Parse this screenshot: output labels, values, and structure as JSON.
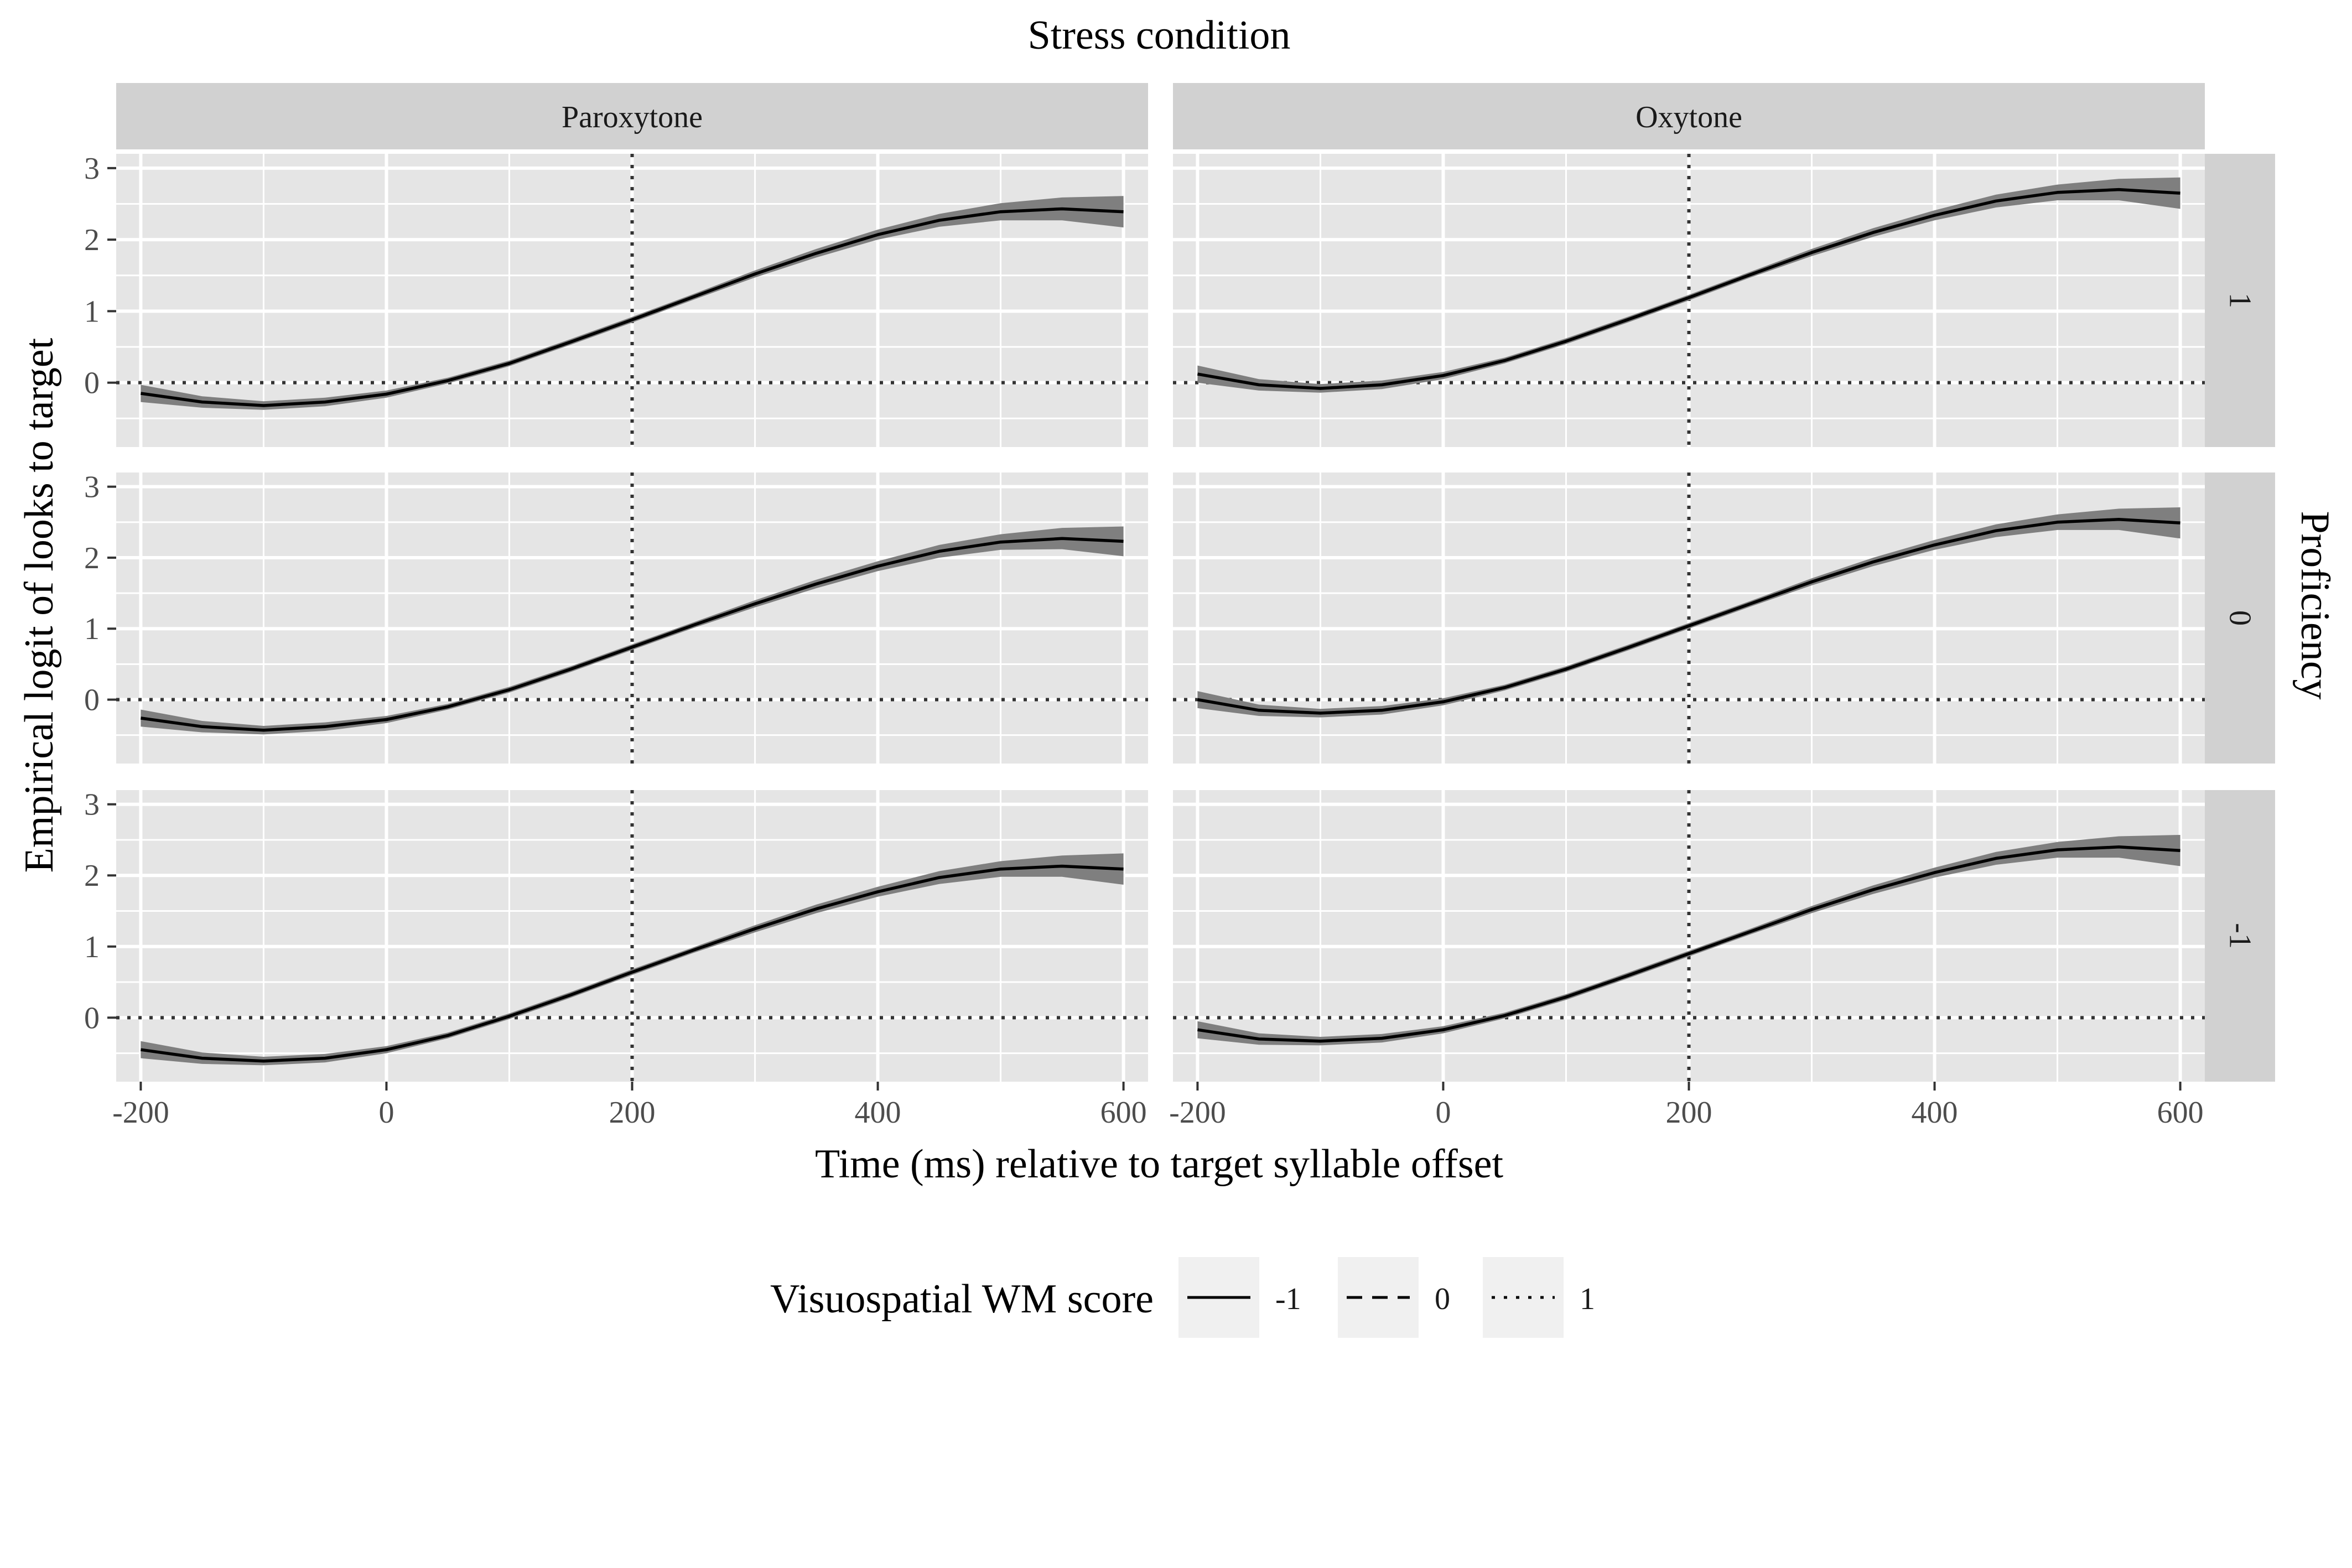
{
  "chart_data": {
    "type": "line",
    "title": "",
    "facet_col_title": "Stress condition",
    "facet_row_title": "Proficiency",
    "xlabel": "Time (ms) relative to target syllable offset",
    "ylabel": "Empirical logit of looks to target",
    "columns": [
      "Paroxytone",
      "Oxytone"
    ],
    "rows": [
      "1",
      "0",
      "-1"
    ],
    "xlim": [
      -220,
      620
    ],
    "ylim": [
      -0.9,
      3.2
    ],
    "x_ticks": [
      -200,
      0,
      200,
      400,
      600
    ],
    "x_tick_labels": [
      "-200",
      "0",
      "200",
      "400",
      "600"
    ],
    "y_ticks": [
      0,
      1,
      2,
      3
    ],
    "y_tick_labels": [
      "0",
      "1",
      "2",
      "3"
    ],
    "reference_lines": {
      "x": 200,
      "y": 0,
      "style": "dotted"
    },
    "grid": true,
    "legend": {
      "title": "Visuospatial WM score",
      "placement": "bottom",
      "items": [
        {
          "label": "-1",
          "linetype": "solid"
        },
        {
          "label": "0",
          "linetype": "dashed"
        },
        {
          "label": "1",
          "linetype": "dotted"
        }
      ]
    },
    "x": [
      -200,
      -150,
      -100,
      -50,
      0,
      50,
      100,
      150,
      200,
      250,
      300,
      350,
      400,
      450,
      500,
      550,
      600
    ],
    "panels": [
      {
        "row": "1",
        "col": "Paroxytone",
        "series": [
          {
            "name": "-1",
            "values": [
              -0.15,
              -0.27,
              -0.32,
              -0.27,
              -0.16,
              0.03,
              0.27,
              0.57,
              0.88,
              1.2,
              1.52,
              1.81,
              2.07,
              2.27,
              2.39,
              2.43,
              2.39
            ],
            "lower": [
              -0.27,
              -0.35,
              -0.38,
              -0.33,
              -0.21,
              -0.01,
              0.23,
              0.53,
              0.84,
              1.16,
              1.47,
              1.75,
              2.0,
              2.18,
              2.27,
              2.27,
              2.17
            ],
            "upper": [
              -0.03,
              -0.19,
              -0.26,
              -0.21,
              -0.11,
              0.07,
              0.31,
              0.61,
              0.92,
              1.24,
              1.57,
              1.87,
              2.14,
              2.36,
              2.51,
              2.59,
              2.61
            ]
          }
        ]
      },
      {
        "row": "1",
        "col": "Oxytone",
        "series": [
          {
            "name": "-1",
            "values": [
              0.12,
              -0.03,
              -0.08,
              -0.03,
              0.1,
              0.31,
              0.58,
              0.88,
              1.19,
              1.51,
              1.82,
              2.1,
              2.34,
              2.54,
              2.66,
              2.7,
              2.65
            ],
            "lower": [
              0.0,
              -0.11,
              -0.14,
              -0.09,
              0.05,
              0.27,
              0.54,
              0.84,
              1.15,
              1.47,
              1.77,
              2.04,
              2.27,
              2.45,
              2.55,
              2.55,
              2.43
            ],
            "upper": [
              0.24,
              0.05,
              -0.02,
              0.03,
              0.15,
              0.35,
              0.62,
              0.92,
              1.23,
              1.55,
              1.87,
              2.16,
              2.41,
              2.63,
              2.77,
              2.85,
              2.87
            ]
          }
        ]
      },
      {
        "row": "0",
        "col": "Paroxytone",
        "series": [
          {
            "name": "-1",
            "values": [
              -0.26,
              -0.38,
              -0.43,
              -0.38,
              -0.28,
              -0.1,
              0.14,
              0.43,
              0.74,
              1.05,
              1.35,
              1.63,
              1.88,
              2.09,
              2.22,
              2.27,
              2.23
            ],
            "lower": [
              -0.38,
              -0.46,
              -0.49,
              -0.44,
              -0.33,
              -0.14,
              0.1,
              0.39,
              0.7,
              1.01,
              1.3,
              1.57,
              1.81,
              2.0,
              2.11,
              2.12,
              2.02
            ],
            "upper": [
              -0.14,
              -0.3,
              -0.37,
              -0.32,
              -0.23,
              -0.06,
              0.18,
              0.47,
              0.78,
              1.09,
              1.4,
              1.69,
              1.95,
              2.18,
              2.33,
              2.42,
              2.44
            ]
          }
        ]
      },
      {
        "row": "0",
        "col": "Oxytone",
        "series": [
          {
            "name": "-1",
            "values": [
              0.0,
              -0.15,
              -0.19,
              -0.15,
              -0.03,
              0.17,
              0.43,
              0.73,
              1.04,
              1.35,
              1.66,
              1.94,
              2.18,
              2.38,
              2.5,
              2.54,
              2.49
            ],
            "lower": [
              -0.12,
              -0.23,
              -0.25,
              -0.21,
              -0.08,
              0.13,
              0.39,
              0.69,
              1.0,
              1.31,
              1.61,
              1.88,
              2.11,
              2.29,
              2.39,
              2.39,
              2.27
            ],
            "upper": [
              0.12,
              -0.07,
              -0.13,
              -0.09,
              0.02,
              0.21,
              0.47,
              0.77,
              1.08,
              1.39,
              1.71,
              2.0,
              2.25,
              2.47,
              2.61,
              2.69,
              2.71
            ]
          }
        ]
      },
      {
        "row": "-1",
        "col": "Paroxytone",
        "series": [
          {
            "name": "-1",
            "values": [
              -0.45,
              -0.57,
              -0.61,
              -0.57,
              -0.45,
              -0.25,
              0.02,
              0.32,
              0.64,
              0.95,
              1.25,
              1.53,
              1.77,
              1.97,
              2.09,
              2.13,
              2.09
            ],
            "lower": [
              -0.57,
              -0.65,
              -0.67,
              -0.63,
              -0.5,
              -0.29,
              -0.02,
              0.28,
              0.6,
              0.91,
              1.2,
              1.47,
              1.7,
              1.88,
              1.98,
              1.98,
              1.87
            ],
            "upper": [
              -0.33,
              -0.49,
              -0.55,
              -0.51,
              -0.4,
              -0.21,
              0.06,
              0.36,
              0.68,
              0.99,
              1.3,
              1.59,
              1.84,
              2.06,
              2.2,
              2.28,
              2.31
            ]
          }
        ]
      },
      {
        "row": "-1",
        "col": "Oxytone",
        "series": [
          {
            "name": "-1",
            "values": [
              -0.17,
              -0.3,
              -0.33,
              -0.29,
              -0.17,
              0.03,
              0.29,
              0.59,
              0.9,
              1.21,
              1.52,
              1.8,
              2.04,
              2.24,
              2.36,
              2.4,
              2.35
            ],
            "lower": [
              -0.29,
              -0.38,
              -0.39,
              -0.35,
              -0.22,
              -0.01,
              0.25,
              0.55,
              0.86,
              1.17,
              1.47,
              1.74,
              1.97,
              2.15,
              2.25,
              2.25,
              2.13
            ],
            "upper": [
              -0.05,
              -0.22,
              -0.27,
              -0.23,
              -0.12,
              0.07,
              0.33,
              0.63,
              0.94,
              1.25,
              1.57,
              1.86,
              2.11,
              2.33,
              2.47,
              2.55,
              2.57
            ]
          }
        ]
      }
    ],
    "colors": {
      "panel_bg": "#e5e5e5",
      "strip_bg": "#d1d1d1",
      "grid": "#ffffff",
      "line": "#000000",
      "ribbon": "#7f7f7f",
      "legend_key_bg": "#f0f0f0"
    }
  }
}
